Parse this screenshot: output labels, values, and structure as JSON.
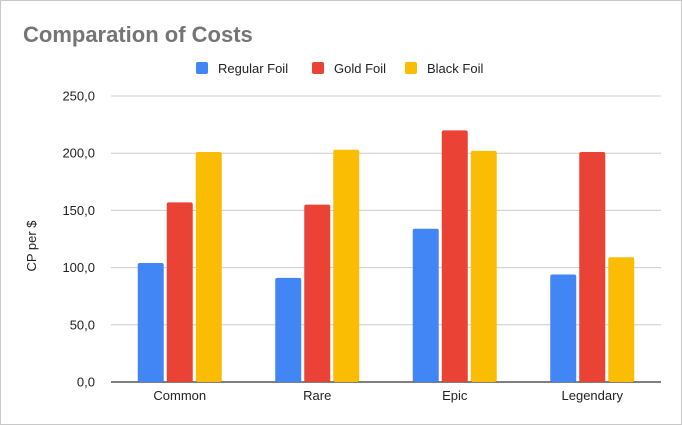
{
  "chart_data": {
    "type": "bar",
    "title": "Comparation of Costs",
    "xlabel": "",
    "ylabel": "CP per $",
    "ylim": [
      0,
      250
    ],
    "yticks": [
      "0,0",
      "50,0",
      "100,0",
      "150,0",
      "200,0",
      "250,0"
    ],
    "yticks_values": [
      0,
      50,
      100,
      150,
      200,
      250
    ],
    "grid": true,
    "legend_position": "top",
    "categories": [
      "Common",
      "Rare",
      "Epic",
      "Legendary"
    ],
    "series": [
      {
        "name": "Regular Foil",
        "color": "#4285f4",
        "values": [
          104,
          91,
          134,
          94
        ]
      },
      {
        "name": "Gold Foil",
        "color": "#ea4335",
        "values": [
          157,
          155,
          220,
          201
        ]
      },
      {
        "name": "Black Foil",
        "color": "#fbbc04",
        "values": [
          201,
          203,
          202,
          109
        ]
      }
    ]
  }
}
